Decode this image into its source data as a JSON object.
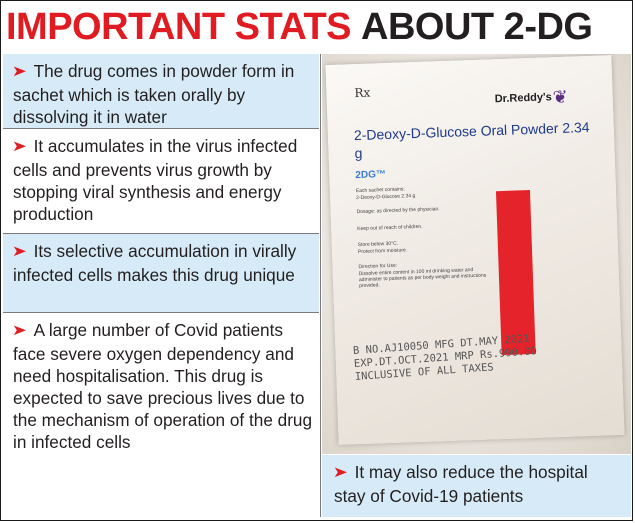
{
  "headline": {
    "part1": "IMPORTANT STATS",
    "part2": "ABOUT 2-DG",
    "colors": {
      "red": "#e01b22",
      "dark": "#231f20",
      "panel_blue": "#d6ebf7"
    }
  },
  "bullet_symbol": "➤",
  "stats": [
    {
      "text": "The drug comes in powder form in sachet which is taken orally by dissolving it in water"
    },
    {
      "text": "It accumulates in the virus infected cells and prevents virus growth by stopping viral synthesis and energy production"
    },
    {
      "text": "Its selective accumulation in virally infected cells makes this drug unique"
    },
    {
      "text": "A large number of Covid patients face severe oxygen dependency and need hospitalisation. This drug is expected to save precious lives due to the mechanism of operation of the drug in infected cells"
    }
  ],
  "callout": {
    "text": "It may also reduce the hospital stay of Covid-19 patients"
  },
  "sachet": {
    "rx": "Rx",
    "brand": "Dr.Reddy's",
    "logo_icon": "brand-logo-icon",
    "product_name": "2-Deoxy-D-Glucose Oral Powder 2.34 g",
    "mark": "2DG™",
    "fine_print": [
      "Each sachet contains:",
      "2-Deoxy-D-Glucose 2.34 g",
      "Dosage: as directed by the physician.",
      "Keep out of reach of children.",
      "Store below 30°C.",
      "Protect from moisture.",
      "Direction for Use:",
      "Dissolve entire content in 100 ml drinking water and administer to patients as per body weight and instructions provided."
    ],
    "batch_line": "B NO.AJ10050 MFG DT.MAY 2021",
    "expiry_line": "EXP.DT.OCT.2021 MRP Rs.990.00",
    "tax_line": "INCLUSIVE OF ALL TAXES"
  }
}
